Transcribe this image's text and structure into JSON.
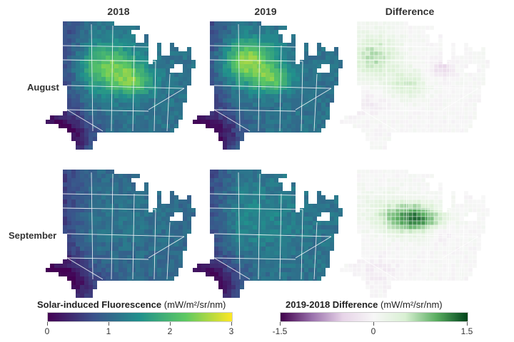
{
  "columns": [
    "2018",
    "2019",
    "Difference"
  ],
  "rows": [
    "August",
    "September"
  ],
  "legends": {
    "sif": {
      "title": "Solar-induced Fluorescence",
      "units": "(mW/m²/sr/nm)",
      "ticks": [
        "0",
        "1",
        "2",
        "3"
      ],
      "min": 0,
      "max": 3,
      "colors": [
        "#440154",
        "#3b528b",
        "#21918c",
        "#5ec962",
        "#fde725"
      ]
    },
    "diff": {
      "title": "2019-2018 Difference",
      "units": "(mW/m²/sr/nm)",
      "ticks": [
        "-1.5",
        "0",
        "1.5"
      ],
      "min": -1.5,
      "max": 1.5,
      "colors": [
        "#40004b",
        "#9970ab",
        "#e7d4e8",
        "#f7f7f7",
        "#d9f0d3",
        "#5aae61",
        "#00441b"
      ]
    }
  }
}
